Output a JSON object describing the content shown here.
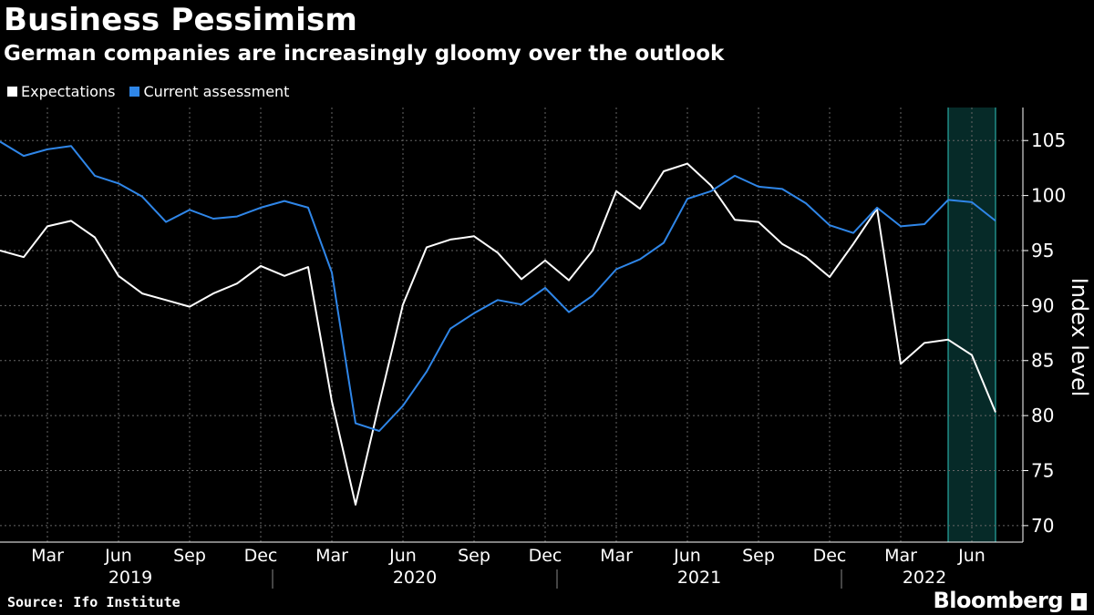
{
  "title": "Business Pessimism",
  "subtitle": "German companies are increasingly gloomy over the outlook",
  "source": "Source: Ifo Institute",
  "brand": "Bloomberg",
  "brand_badge_icon": "bloomberg-badge-icon",
  "colors": {
    "background": "#000000",
    "expectations": "#ffffff",
    "current": "#2f86e8",
    "highlight_fill": "#062a28",
    "highlight_border": "#2fc7c0",
    "grid": "#666666"
  },
  "legend": [
    {
      "label": "Expectations",
      "color": "#ffffff"
    },
    {
      "label": "Current assessment",
      "color": "#2f86e8"
    }
  ],
  "chart_data": {
    "type": "line",
    "title": "Business Pessimism",
    "ylabel": "Index level",
    "ylim": [
      68.5,
      108
    ],
    "yticks": [
      70,
      75,
      80,
      85,
      90,
      95,
      100,
      105
    ],
    "x_start": "2019-01",
    "month_tick_labels": [
      {
        "label": "Mar",
        "month_index": 2
      },
      {
        "label": "Jun",
        "month_index": 5
      },
      {
        "label": "Sep",
        "month_index": 8
      },
      {
        "label": "Dec",
        "month_index": 11
      },
      {
        "label": "Mar",
        "month_index": 14
      },
      {
        "label": "Jun",
        "month_index": 17
      },
      {
        "label": "Sep",
        "month_index": 20
      },
      {
        "label": "Dec",
        "month_index": 23
      },
      {
        "label": "Mar",
        "month_index": 26
      },
      {
        "label": "Jun",
        "month_index": 29
      },
      {
        "label": "Sep",
        "month_index": 32
      },
      {
        "label": "Dec",
        "month_index": 35
      },
      {
        "label": "Mar",
        "month_index": 38
      },
      {
        "label": "Jun",
        "month_index": 41
      }
    ],
    "year_labels": [
      {
        "label": "2019",
        "center_month_index": 5.5
      },
      {
        "label": "2020",
        "center_month_index": 17.5
      },
      {
        "label": "2021",
        "center_month_index": 29.5
      },
      {
        "label": "2022",
        "center_month_index": 39.0
      }
    ],
    "year_separators": [
      11.5,
      23.5,
      35.5
    ],
    "highlight": {
      "from_month_index": 40,
      "to_month_index": 42
    },
    "series": [
      {
        "name": "Expectations",
        "values": [
          95.0,
          94.4,
          97.2,
          97.7,
          96.2,
          92.7,
          91.1,
          90.5,
          89.9,
          91.1,
          92.0,
          93.6,
          92.7,
          93.5,
          81.3,
          71.9,
          81.1,
          90.1,
          95.3,
          96.0,
          96.3,
          94.8,
          92.4,
          94.1,
          92.3,
          95.0,
          100.4,
          98.8,
          102.2,
          102.9,
          100.9,
          97.8,
          97.6,
          95.6,
          94.4,
          92.6,
          95.6,
          98.8,
          84.7,
          86.6,
          86.9,
          85.5,
          80.3
        ]
      },
      {
        "name": "Current assessment",
        "values": [
          104.9,
          103.6,
          104.2,
          104.5,
          101.8,
          101.1,
          99.9,
          97.6,
          98.7,
          97.9,
          98.1,
          98.9,
          99.5,
          98.9,
          93.0,
          79.3,
          78.6,
          80.9,
          84.0,
          87.9,
          89.3,
          90.5,
          90.1,
          91.6,
          89.4,
          90.9,
          93.3,
          94.2,
          95.7,
          99.7,
          100.4,
          101.8,
          100.8,
          100.6,
          99.3,
          97.3,
          96.6,
          98.9,
          97.2,
          97.4,
          99.6,
          99.4,
          97.7
        ]
      }
    ]
  }
}
